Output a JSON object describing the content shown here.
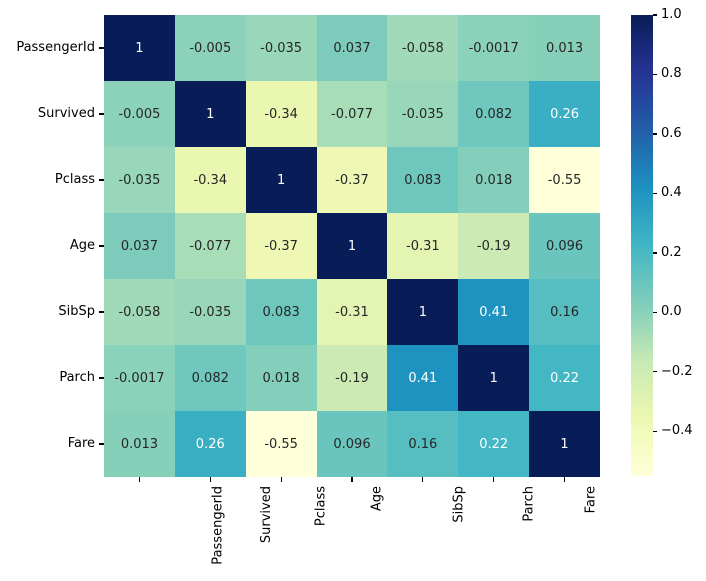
{
  "figure": {
    "background": "#ffffff"
  },
  "chart_data": {
    "type": "heatmap",
    "title": "",
    "xlabel": "",
    "ylabel": "",
    "categories": [
      "PassengerId",
      "Survived",
      "Pclass",
      "Age",
      "SibSp",
      "Parch",
      "Fare"
    ],
    "matrix": [
      [
        1,
        -0.005,
        -0.035,
        0.037,
        -0.058,
        -0.0017,
        0.013
      ],
      [
        -0.005,
        1,
        -0.34,
        -0.077,
        -0.035,
        0.082,
        0.26
      ],
      [
        -0.035,
        -0.34,
        1,
        -0.37,
        0.083,
        0.018,
        -0.55
      ],
      [
        0.037,
        -0.077,
        -0.37,
        1,
        -0.31,
        -0.19,
        0.096
      ],
      [
        -0.058,
        -0.035,
        0.083,
        -0.31,
        1,
        0.41,
        0.16
      ],
      [
        -0.0017,
        0.082,
        0.018,
        -0.19,
        0.41,
        1,
        0.22
      ],
      [
        0.013,
        0.26,
        -0.55,
        0.096,
        0.16,
        0.22,
        1
      ]
    ],
    "vmin": -0.55,
    "vmax": 1.0,
    "colormap": {
      "name": "YlGnBu",
      "stops": [
        {
          "t": 0.0,
          "color": "#ffffd9"
        },
        {
          "t": 0.125,
          "color": "#edf8b1"
        },
        {
          "t": 0.25,
          "color": "#c7e9b4"
        },
        {
          "t": 0.375,
          "color": "#7fcdbb"
        },
        {
          "t": 0.5,
          "color": "#41b6c4"
        },
        {
          "t": 0.625,
          "color": "#1d91c0"
        },
        {
          "t": 0.75,
          "color": "#225ea8"
        },
        {
          "t": 0.875,
          "color": "#253494"
        },
        {
          "t": 1.0,
          "color": "#081d58"
        }
      ]
    },
    "colorbar": {
      "tick_labels": [
        "1.0",
        "0.8",
        "0.6",
        "0.4",
        "0.2",
        "0.0",
        "−0.2",
        "−0.4"
      ],
      "tick_values": [
        1.0,
        0.8,
        0.6,
        0.4,
        0.2,
        0.0,
        -0.2,
        -0.4
      ],
      "position": "right"
    },
    "annotation_colors": {
      "light_text": "#ffffff",
      "dark_text": "#262626",
      "luminance_threshold": 0.408
    },
    "legend": null,
    "grid": false
  }
}
